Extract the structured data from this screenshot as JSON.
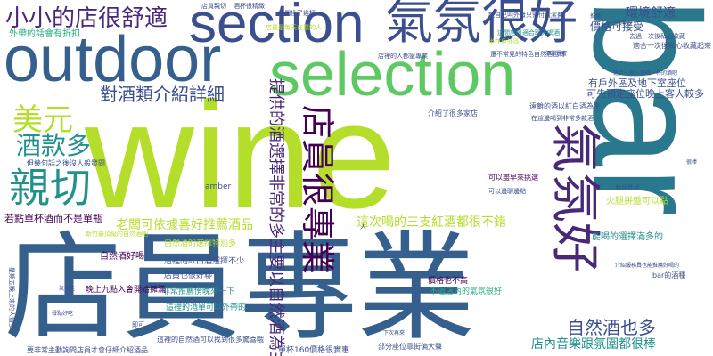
{
  "background": "#ffffff",
  "palette": {
    "navy": "#3b4f8f",
    "blue": "#355f8d",
    "teal": "#2a788e",
    "teal2": "#21918c",
    "green": "#27ad81",
    "lightgreen": "#5ec962",
    "lime": "#b5de2b",
    "yellow": "#fde725",
    "purple": "#440154",
    "violet": "#482878"
  },
  "words": [
    {
      "text": "wine",
      "color": "#b5de2b"
    },
    {
      "text": "bar",
      "color": "#2a788e"
    },
    {
      "text": "店員專業",
      "color": "#355f8d"
    },
    {
      "text": "outdoor",
      "color": "#355f8d"
    },
    {
      "text": "selection",
      "color": "#5ec962"
    },
    {
      "text": "section",
      "color": "#3b4f8f"
    },
    {
      "text": "氣氛很好",
      "color": "#3b4f8f"
    },
    {
      "text": "氣氛好",
      "color": "#482878"
    },
    {
      "text": "親切",
      "color": "#21918c"
    },
    {
      "text": "店員很專業",
      "color": "#440154"
    },
    {
      "text": "小小的店很舒適",
      "color": "#482878"
    },
    {
      "text": "美元",
      "color": "#b5de2b"
    },
    {
      "text": "酒款多",
      "color": "#21918c"
    },
    {
      "text": "對酒類介紹詳細",
      "color": "#3b4f8f"
    },
    {
      "text": "提供的酒選擇非常的多主要以自然酒為主",
      "color": "#482878"
    },
    {
      "text": "自然酒也多",
      "color": "#3b4f8f"
    },
    {
      "text": "環境舒適",
      "color": "#3b4f8f"
    },
    {
      "text": "老闆可依據喜好推薦酒品",
      "color": "#b5de2b"
    },
    {
      "text": "這次喝的三支紅酒都很不錯",
      "color": "#b5de2b"
    },
    {
      "text": "店內音樂跟氛圍都很棒",
      "color": "#21918c"
    },
    {
      "text": "若點單杯酒而不是單瓶",
      "color": "#440154"
    },
    {
      "text": "有戶外區及地下室座位",
      "color": "#3b4f8f"
    },
    {
      "text": "可先預定座位晚上客人較多",
      "color": "#3b4f8f"
    },
    {
      "text": "價格可接受",
      "color": "#3b4f8f"
    },
    {
      "text": "外帶的話會有折扣",
      "color": "#27ad81"
    },
    {
      "text": "火腿拼盤可以點",
      "color": "#b5de2b"
    },
    {
      "text": "能喝的選擇滿多的",
      "color": "#21918c"
    },
    {
      "text": "自然酒好喝",
      "color": "#440154"
    },
    {
      "text": "店員也很好聊",
      "color": "#3b4f8f"
    },
    {
      "text": "非常推薦傍晚來一下",
      "color": "#21918c"
    },
    {
      "text": "這裡的酒單可以外帶的",
      "color": "#21918c"
    },
    {
      "text": "晚上九點入會開始擁滿",
      "color": "#440154"
    },
    {
      "text": "這裡的紅白酒選擇不少",
      "color": "#3b4f8f"
    },
    {
      "text": "自然酒的選擇特別多",
      "color": "#b5de2b"
    },
    {
      "text": "價格也不高",
      "color": "#440154"
    },
    {
      "text": "不過店內的氣氛很好",
      "color": "#27ad81"
    },
    {
      "text": "單杯160價格很實惠",
      "color": "#3b4f8f"
    },
    {
      "text": "這裡的自然酒可以找到很多驚喜哦",
      "color": "#3b4f8f"
    },
    {
      "text": "要非常主動詢問店員才會仔細介紹酒品",
      "color": "#3b4f8f"
    },
    {
      "text": "部分座位靠街偏大聲",
      "color": "#3b4f8f"
    },
    {
      "text": "適合一次後私心收藏起來",
      "color": "#3b4f8f"
    },
    {
      "text": "遠離的酒以紅白酒為主",
      "color": "#3b4f8f"
    },
    {
      "text": "介紹了很多家店",
      "color": "#3b4f8f"
    },
    {
      "text": "可以盡早來挑選",
      "color": "#440154"
    },
    {
      "text": "bar的酒種",
      "color": "#3b4f8f"
    },
    {
      "text": "但幾句話之後沒人般發問",
      "color": "#3b4f8f"
    },
    {
      "text": "新竹最頂級的自然酒吧",
      "color": "#b5de2b"
    },
    {
      "text": "星期五晚上來的人蠻多",
      "color": "#3b4f8f"
    },
    {
      "text": "店員是每天在擴的人",
      "color": "#b5de2b"
    },
    {
      "text": "這間店很適合聊天喝酒",
      "color": "#21918c"
    },
    {
      "text": "能自己叫外賣只需付清潔費",
      "color": "#3b4f8f"
    },
    {
      "text": "店裡的人都蠻專業",
      "color": "#3b4f8f"
    },
    {
      "text": "還不常見的特色自然酒也有",
      "color": "#3b4f8f"
    },
    {
      "text": "坐在戶外區",
      "color": "#b5de2b"
    },
    {
      "text": "我們換了幾杯",
      "color": "#3b4f8f"
    },
    {
      "text": "amber",
      "color": "#3b4f8f"
    },
    {
      "text": "可以邊聊邊點",
      "color": "#3b4f8f"
    },
    {
      "text": "有戶外坐",
      "color": "#3b4f8f"
    },
    {
      "text": "去過一次後私心收藏",
      "color": "#3b4f8f"
    },
    {
      "text": "即可",
      "color": "#3b4f8f"
    },
    {
      "text": "酒杯很精緻",
      "color": "#3b4f8f"
    },
    {
      "text": "在這邊喝到非常多款酒",
      "color": "#3b4f8f"
    },
    {
      "text": "介紹服務員也能推薦好喝的",
      "color": "#3b4f8f"
    },
    {
      "text": "適合一個人來喝一杯的酒吧",
      "color": "#3b4f8f"
    },
    {
      "text": "店員親切",
      "color": "#3b4f8f"
    },
    {
      "text": "餐點好吃",
      "color": "#3b4f8f"
    },
    {
      "text": "氣氛佳",
      "color": "#3b4f8f"
    },
    {
      "text": "酒單豐富",
      "color": "#3b4f8f"
    },
    {
      "text": "服務好",
      "color": "#3b4f8f"
    },
    {
      "text": "下次再來",
      "color": "#3b4f8f"
    },
    {
      "text": "推薦",
      "color": "#3b4f8f"
    },
    {
      "text": "很棒",
      "color": "#3b4f8f"
    },
    {
      "text": "人",
      "color": "#3b4f8f"
    }
  ]
}
